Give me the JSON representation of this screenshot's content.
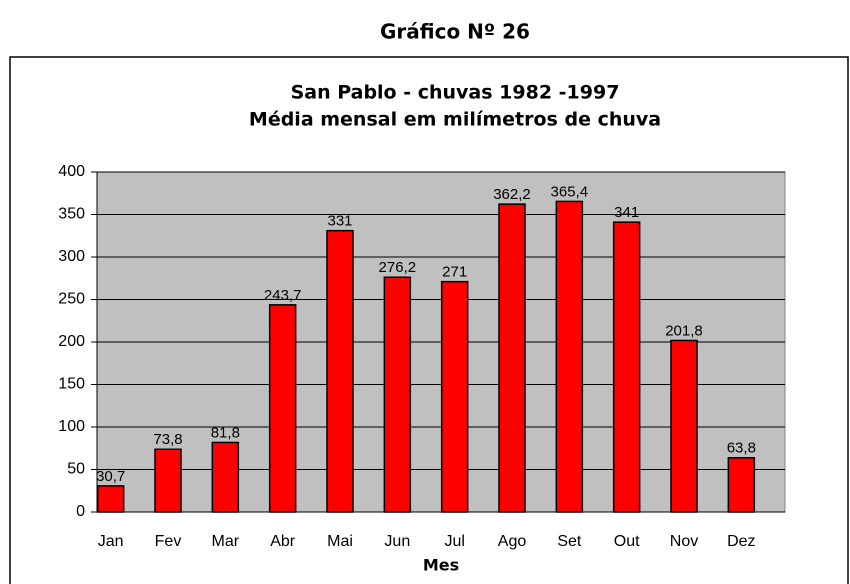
{
  "page_title": "Gráfico Nº 26",
  "chart_data": {
    "type": "bar",
    "title": "San Pablo - chuvas 1982 -1997",
    "subtitle": "Média mensal em milímetros de chuva",
    "x_label": "Mes",
    "categories": [
      "Jan",
      "Fev",
      "Mar",
      "Abr",
      "Mai",
      "Jun",
      "Jul",
      "Ago",
      "Set",
      "Out",
      "Nov",
      "Dez"
    ],
    "values": [
      30.7,
      73.8,
      81.8,
      243.7,
      331,
      276.2,
      271,
      362.2,
      365.4,
      341,
      201.8,
      63.8
    ],
    "value_labels": [
      "30,7",
      "73,8",
      "81,8",
      "243,7",
      "331",
      "276,2",
      "271",
      "362,2",
      "365,4",
      "341",
      "201,8",
      "63,8"
    ],
    "color": "#ff0000",
    "ylim": [
      0,
      400
    ],
    "yticks": [
      0,
      50,
      100,
      150,
      200,
      250,
      300,
      350,
      400
    ],
    "grid": true
  }
}
